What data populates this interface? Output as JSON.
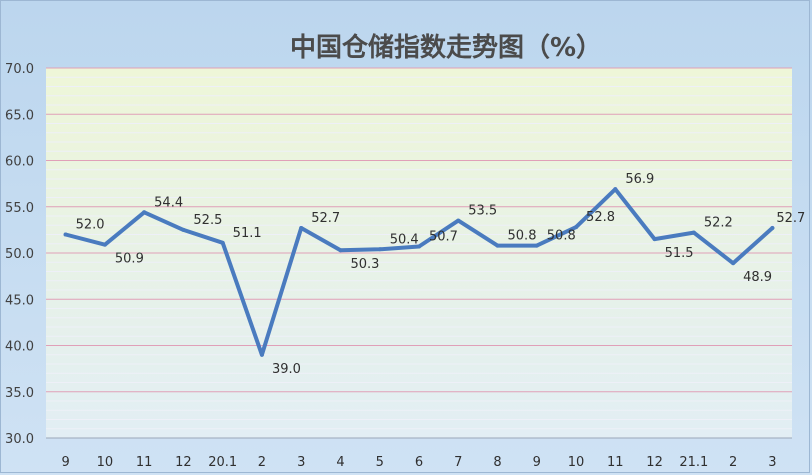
{
  "chart_data": {
    "type": "line",
    "title": "中国仓储指数走势图（%）",
    "xlabel": "",
    "ylabel": "",
    "ylim": [
      30.0,
      70.0
    ],
    "y_ticks": [
      "30.0",
      "35.0",
      "40.0",
      "45.0",
      "50.0",
      "55.0",
      "60.0",
      "65.0",
      "70.0"
    ],
    "categories": [
      "9",
      "10",
      "11",
      "12",
      "20.1",
      "2",
      "3",
      "4",
      "5",
      "6",
      "7",
      "8",
      "9",
      "10",
      "11",
      "12",
      "21.1",
      "2",
      "3"
    ],
    "values": [
      52.0,
      50.9,
      54.4,
      52.5,
      51.1,
      39.0,
      52.7,
      50.3,
      50.4,
      50.7,
      53.5,
      50.8,
      50.8,
      52.8,
      56.9,
      51.5,
      52.2,
      48.9,
      52.7
    ],
    "data_labels": [
      "52.0",
      "50.9",
      "54.4",
      "52.5",
      "51.1",
      "39.0",
      "52.7",
      "50.3",
      "50.4",
      "50.7",
      "53.5",
      "50.8",
      "50.8",
      "52.8",
      "56.9",
      "51.5",
      "52.2",
      "48.9",
      "52.7"
    ],
    "grid": true,
    "legend": "none",
    "colors": {
      "line": "#4a7bbf",
      "major_grid": "#e0a0b8",
      "minor_grid": "#eef0f8"
    }
  }
}
